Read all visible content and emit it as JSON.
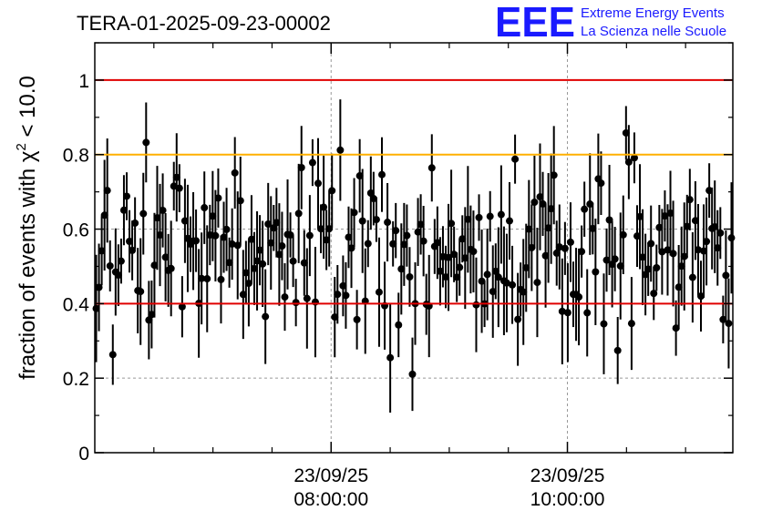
{
  "chart_data": {
    "type": "scatter",
    "title": "TERA-01-2025-09-23-00002",
    "ylabel_prefix": "fraction of events with ",
    "ylabel_symbol": "χ",
    "ylabel_sup": "2",
    "ylabel_suffix": " < 10.0",
    "xlabel": "",
    "ylim": [
      0,
      1.1
    ],
    "yticks": [
      "0",
      "0.2",
      "0.4",
      "0.6",
      "0.8",
      "1"
    ],
    "ytick_values": [
      0,
      0.2,
      0.4,
      0.6,
      0.8,
      1.0
    ],
    "xlim_hours": [
      6.0,
      11.4
    ],
    "xticks": [
      {
        "hour": 8.0,
        "date": "23/09/25",
        "time": "08:00:00"
      },
      {
        "hour": 10.0,
        "date": "23/09/25",
        "time": "10:00:00"
      }
    ],
    "minor_xtick_hours": [
      6.5,
      7.0,
      7.5,
      8.5,
      9.0,
      9.5,
      10.5,
      11.0
    ],
    "grid": "dotted",
    "reference_lines": [
      {
        "y": 1.0,
        "color": "#e00000"
      },
      {
        "y": 0.8,
        "color": "#ffb000"
      },
      {
        "y": 0.4,
        "color": "#e00000"
      }
    ],
    "point_color": "#000000",
    "n_points": 230,
    "mean": 0.55,
    "typical_error": 0.1
  },
  "logo": {
    "mark": "EEE",
    "line1": "Extreme Energy Events",
    "line2": "La Scienza nelle Scuole",
    "color": "#1a1aff"
  }
}
